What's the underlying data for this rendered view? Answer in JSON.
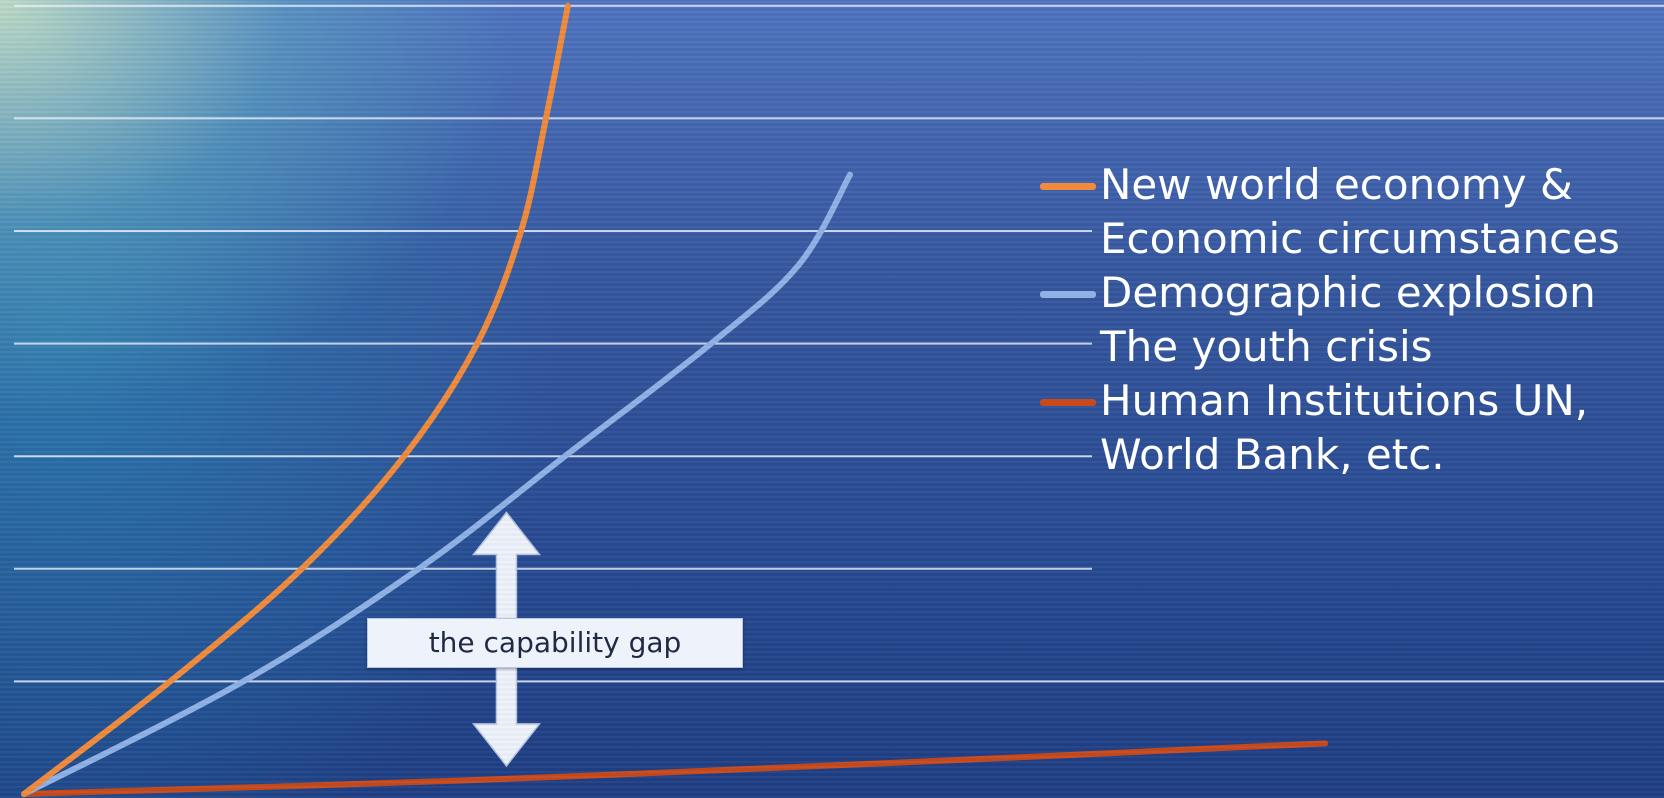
{
  "chart_data": {
    "type": "line",
    "title": "",
    "xlabel": "",
    "ylabel": "",
    "x_range": [
      0,
      100
    ],
    "ylim": [
      0,
      7
    ],
    "grid": true,
    "legend_position": "right",
    "series": [
      {
        "name": "New world economy & Economic circumstances",
        "color": "#f08a3c",
        "points": [
          [
            0,
            0
          ],
          [
            10,
            1
          ],
          [
            19,
            2
          ],
          [
            26,
            3
          ],
          [
            31,
            4
          ],
          [
            34,
            5
          ],
          [
            35.7,
            6
          ],
          [
            37.2,
            7
          ]
        ]
      },
      {
        "name": "Demographic explosion The youth crisis",
        "color": "#8fb1e6",
        "points": [
          [
            0,
            0
          ],
          [
            15,
            1
          ],
          [
            27,
            2
          ],
          [
            37,
            3
          ],
          [
            47,
            4
          ],
          [
            53,
            4.7
          ],
          [
            56.5,
            5.5
          ]
        ]
      },
      {
        "name": "Human Institutions UN, World Bank, etc.",
        "color": "#c64a1c",
        "points": [
          [
            0,
            0
          ],
          [
            30,
            0.12
          ],
          [
            60,
            0.28
          ],
          [
            89,
            0.45
          ]
        ]
      }
    ],
    "annotations": [
      {
        "text": "the capability gap",
        "x": 33,
        "y_from": 0.25,
        "y_to": 2.5
      }
    ]
  }
}
